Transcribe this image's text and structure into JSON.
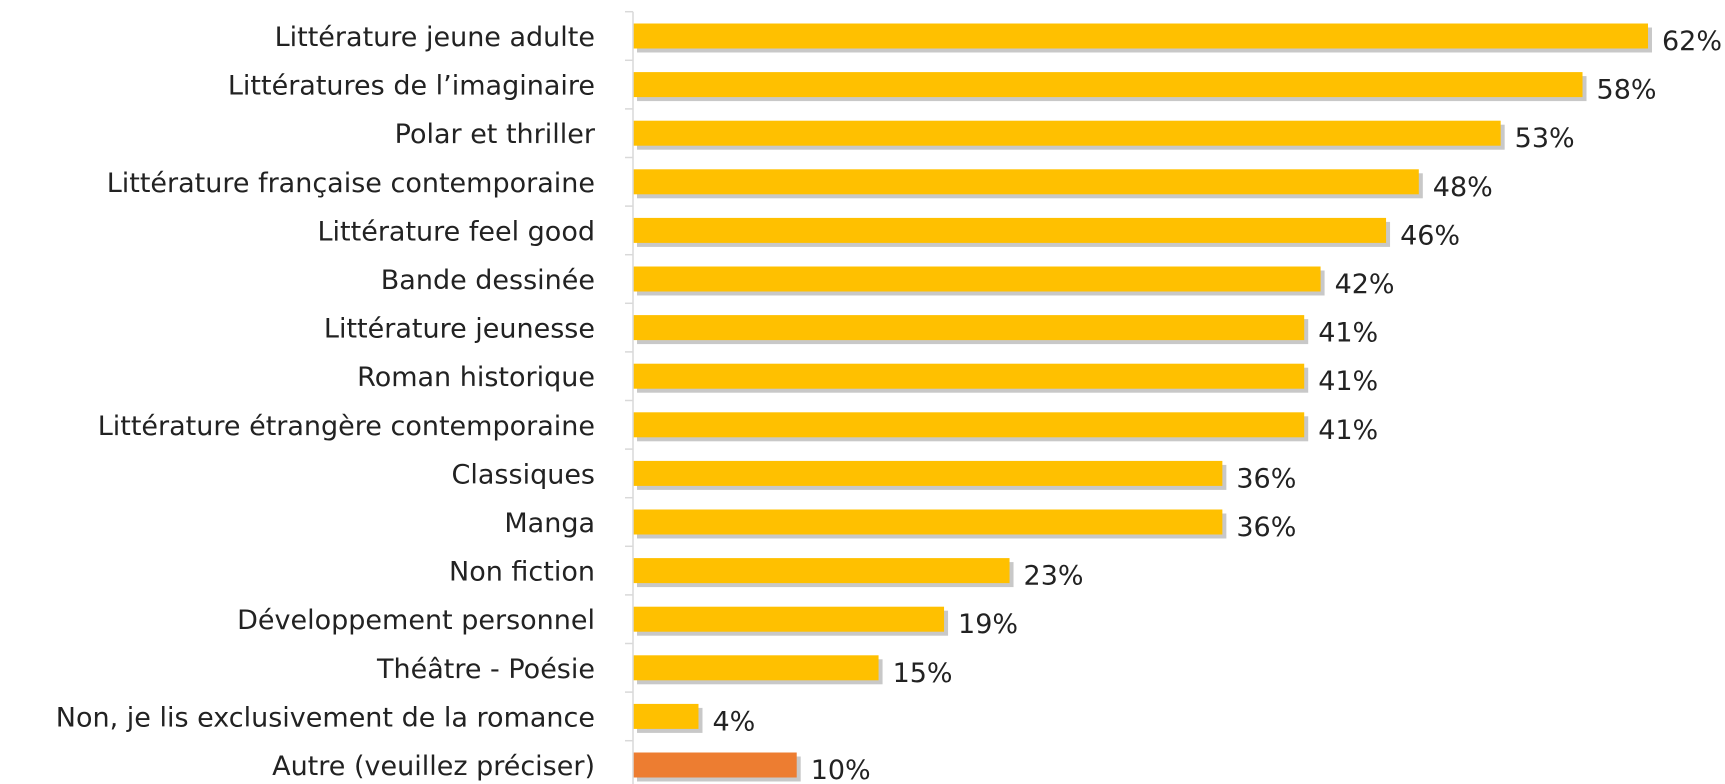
{
  "chart_data": {
    "type": "bar",
    "orientation": "horizontal",
    "title": "",
    "xlabel": "",
    "ylabel": "",
    "xlim": [
      0,
      62
    ],
    "grid": false,
    "legend": "none",
    "value_suffix": "%",
    "colors": {
      "default": "#ffc000",
      "highlight": "#ed7d31",
      "shadow": "#c8c8c8"
    },
    "categories": [
      "Littérature jeune adulte",
      "Littératures de l’imaginaire",
      "Polar et thriller",
      "Littérature française contemporaine",
      "Littérature feel good",
      "Bande dessinée",
      "Littérature jeunesse",
      "Roman historique",
      "Littérature étrangère contemporaine",
      "Classiques",
      "Manga",
      "Non fiction",
      "Développement personnel",
      "Théâtre - Poésie",
      "Non, je lis exclusivement de la romance",
      "Autre (veuillez préciser)"
    ],
    "values": [
      62,
      58,
      53,
      48,
      46,
      42,
      41,
      41,
      41,
      36,
      36,
      23,
      19,
      15,
      4,
      10
    ],
    "value_labels": [
      "62%",
      "58%",
      "53%",
      "48%",
      "46%",
      "42%",
      "41%",
      "41%",
      "41%",
      "36%",
      "36%",
      "23%",
      "19%",
      "15%",
      "4%",
      "10%"
    ],
    "highlight_categories": [
      "Autre (veuillez préciser)"
    ]
  }
}
